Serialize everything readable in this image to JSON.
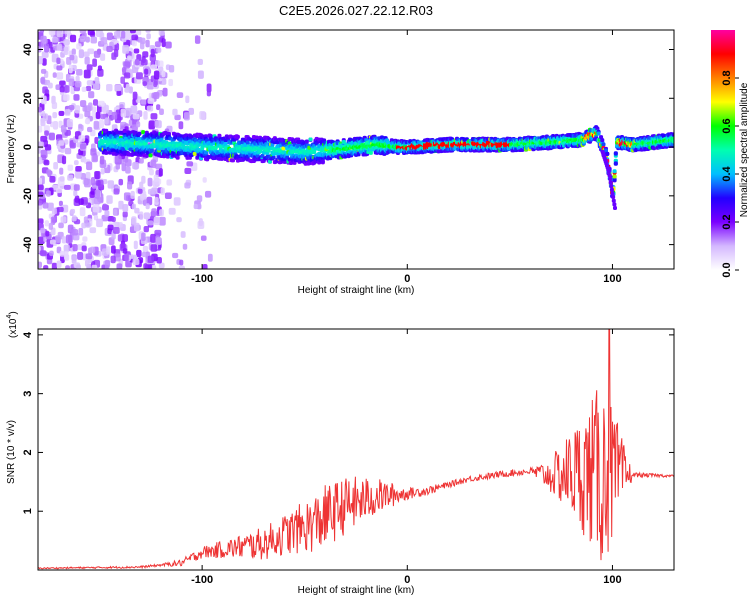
{
  "title": "C2E5.2026.027.22.12.R03",
  "chart_data": [
    {
      "type": "heatmap",
      "id": "spectrogram",
      "xlabel": "Height of straight line (km)",
      "ylabel": "Frequency (Hz)",
      "xlim": [
        -180,
        130
      ],
      "ylim": [
        -50,
        48
      ],
      "x_ticks": [
        -100,
        0,
        100
      ],
      "y_ticks": [
        -40,
        -20,
        0,
        20,
        40
      ],
      "colorbar": {
        "label": "Normalized spectral amplitude",
        "range": [
          0,
          1
        ],
        "ticks": [
          "0.0",
          "0.2",
          "0.4",
          "0.6",
          "0.8"
        ],
        "colors": [
          "#ffffff",
          "#d4b8ff",
          "#7a00ff",
          "#2200ff",
          "#00bfff",
          "#00ffb0",
          "#00ff00",
          "#ffff00",
          "#ff8000",
          "#ff0000",
          "#ff00a0"
        ]
      },
      "ridge": {
        "description_points_km_hz": [
          [
            -145,
            2
          ],
          [
            -120,
            1
          ],
          [
            -100,
            0
          ],
          [
            -70,
            -1
          ],
          [
            -50,
            -2
          ],
          [
            -35,
            -1
          ],
          [
            -15,
            1
          ],
          [
            -5,
            0
          ],
          [
            0,
            0
          ],
          [
            20,
            1
          ],
          [
            50,
            1
          ],
          [
            70,
            2
          ],
          [
            85,
            3
          ],
          [
            92,
            6
          ],
          [
            97,
            -4
          ],
          [
            100,
            -20
          ],
          [
            102,
            2
          ],
          [
            110,
            1
          ],
          [
            130,
            3
          ]
        ],
        "peak_segment_km": [
          -5,
          50
        ]
      }
    },
    {
      "type": "line",
      "id": "snr",
      "xlabel": "Height of straight line (km)",
      "ylabel": "SNR (10 * v/v)",
      "y_multiplier": "(x10^4)",
      "y_multiplier_base": "(x10",
      "y_multiplier_exp": "4",
      "y_multiplier_close": ")",
      "xlim": [
        -180,
        130
      ],
      "ylim": [
        0,
        4.1
      ],
      "x_ticks": [
        -100,
        0,
        100
      ],
      "y_ticks": [
        1,
        2,
        3,
        4
      ],
      "color": "#ee3333",
      "envelope_km_snr": [
        [
          -180,
          0.03
        ],
        [
          -130,
          0.05
        ],
        [
          -110,
          0.12
        ],
        [
          -100,
          0.3
        ],
        [
          -90,
          0.35
        ],
        [
          -70,
          0.45
        ],
        [
          -60,
          0.6
        ],
        [
          -45,
          0.8
        ],
        [
          -30,
          1.1
        ],
        [
          -15,
          1.25
        ],
        [
          0,
          1.3
        ],
        [
          10,
          1.35
        ],
        [
          20,
          1.45
        ],
        [
          30,
          1.55
        ],
        [
          40,
          1.6
        ],
        [
          50,
          1.65
        ],
        [
          60,
          1.68
        ],
        [
          70,
          1.6
        ],
        [
          80,
          1.65
        ],
        [
          90,
          1.65
        ],
        [
          100,
          1.6
        ],
        [
          110,
          1.62
        ],
        [
          130,
          1.6
        ]
      ],
      "noise_km_amp": [
        [
          -180,
          0.01
        ],
        [
          -120,
          0.02
        ],
        [
          -105,
          0.08
        ],
        [
          -90,
          0.15
        ],
        [
          -60,
          0.35
        ],
        [
          -40,
          0.55
        ],
        [
          -25,
          0.45
        ],
        [
          -10,
          0.25
        ],
        [
          0,
          0.1
        ],
        [
          20,
          0.05
        ],
        [
          60,
          0.06
        ],
        [
          70,
          0.3
        ],
        [
          85,
          1.0
        ],
        [
          95,
          1.6
        ],
        [
          100,
          1.2
        ],
        [
          105,
          0.6
        ],
        [
          110,
          0.04
        ],
        [
          130,
          0.02
        ]
      ],
      "peak_km": 98.5,
      "peak_value": 4.1
    }
  ]
}
